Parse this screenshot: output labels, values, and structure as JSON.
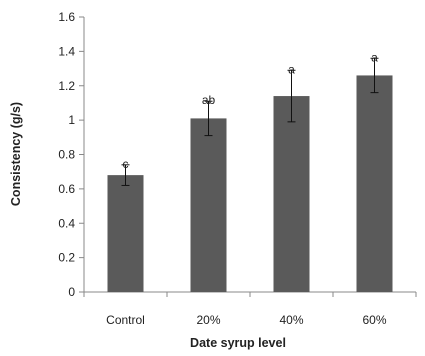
{
  "chart_data": {
    "type": "bar",
    "categories": [
      "Control",
      "20%",
      "40%",
      "60%"
    ],
    "values": [
      0.68,
      1.01,
      1.14,
      1.26
    ],
    "errors": [
      0.06,
      0.1,
      0.15,
      0.1
    ],
    "significance_labels": [
      "c",
      "ab",
      "a",
      "a"
    ],
    "xlabel": "Date syrup level",
    "ylabel": "Consistency (g/s)",
    "ylim": [
      0,
      1.6
    ],
    "yticks": [
      0,
      0.2,
      0.4,
      0.6,
      0.8,
      1,
      1.2,
      1.4,
      1.6
    ],
    "ytick_labels": [
      "0",
      "0.2",
      "0.4",
      "0.6",
      "0.8",
      "1",
      "1.2",
      "1.4",
      "1.6"
    ],
    "grid": false,
    "legend": "none",
    "bar_color": "#5a5a5a"
  }
}
